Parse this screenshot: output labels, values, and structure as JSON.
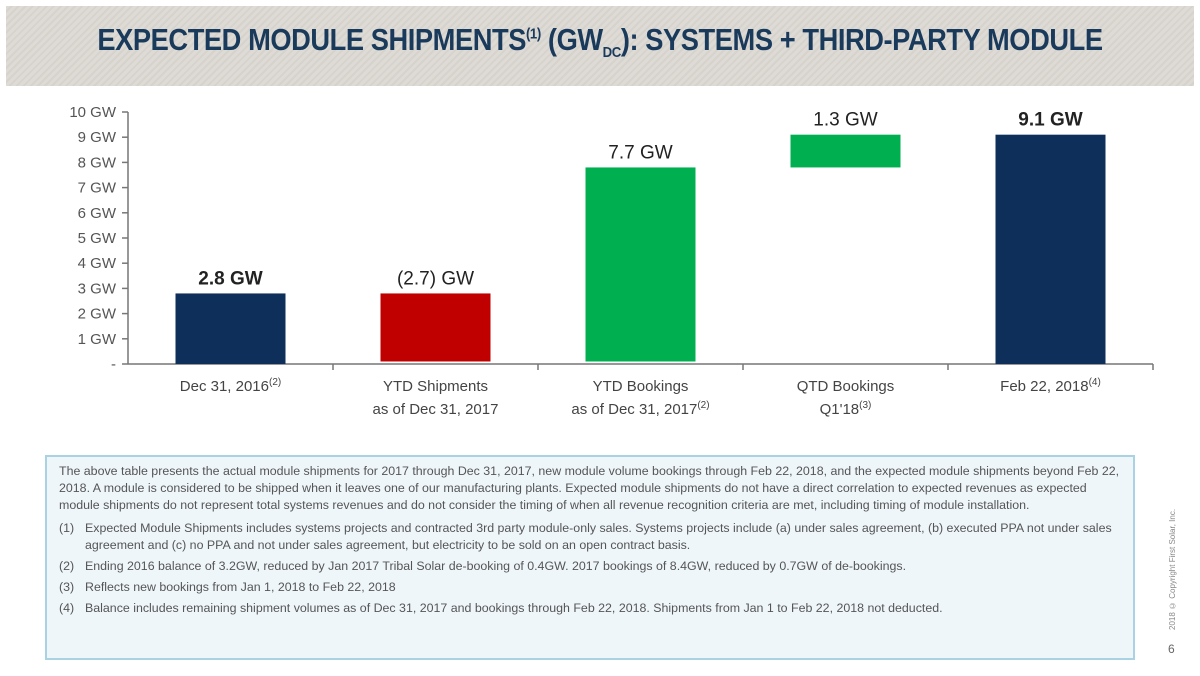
{
  "title": {
    "main": "EXPECTED MODULE SHIPMENTS",
    "sup": "(1)",
    "unit_pre": " (GW",
    "unit_sub": "DC",
    "unit_post": "): SYSTEMS + THIRD-PARTY MODULE"
  },
  "chart_data": {
    "type": "bar",
    "subtype": "waterfall",
    "ylim": [
      0,
      10
    ],
    "yticks": [
      "-",
      "1 GW",
      "2 GW",
      "3 GW",
      "4 GW",
      "5 GW",
      "6 GW",
      "7 GW",
      "8 GW",
      "9 GW",
      "10 GW"
    ],
    "grid": false,
    "categories": [
      {
        "line1": "Dec 31, 2016",
        "line1_sup": "(2)",
        "line2": ""
      },
      {
        "line1": "YTD Shipments",
        "line1_sup": "",
        "line2": "as of Dec 31, 2017"
      },
      {
        "line1": "YTD Bookings",
        "line1_sup": "",
        "line2": "as of Dec 31, 2017",
        "line2_sup": "(2)"
      },
      {
        "line1": "QTD Bookings",
        "line1_sup": "",
        "line2": "Q1'18",
        "line2_sup": "(3)"
      },
      {
        "line1": "Feb 22, 2018",
        "line1_sup": "(4)",
        "line2": ""
      }
    ],
    "bars": [
      {
        "start": 0,
        "end": 2.8,
        "label": "2.8 GW",
        "bold": true,
        "color": "#0d2f5a"
      },
      {
        "start": 0.1,
        "end": 2.8,
        "label": "(2.7) GW",
        "bold": false,
        "color": "#c00000"
      },
      {
        "start": 0.1,
        "end": 7.8,
        "label": "7.7 GW",
        "bold": false,
        "color": "#00b050"
      },
      {
        "start": 7.8,
        "end": 9.1,
        "label": "1.3 GW",
        "bold": false,
        "color": "#00b050"
      },
      {
        "start": 0,
        "end": 9.1,
        "label": "9.1 GW",
        "bold": true,
        "color": "#0d2f5a"
      }
    ]
  },
  "notes": {
    "intro": "The above table presents the actual module shipments for 2017 through Dec 31, 2017, new module volume bookings through Feb 22, 2018, and the expected module shipments beyond Feb 22, 2018. A module is considered to be shipped when it leaves one of our manufacturing plants. Expected module shipments do not have a direct correlation to expected revenues as expected module shipments do not represent total systems revenues and do not consider the timing of when all revenue recognition criteria are met, including timing of module installation.",
    "footnotes": [
      {
        "n": "(1)",
        "text": "Expected Module Shipments includes systems projects and contracted 3rd party module-only sales. Systems projects include (a) under sales agreement, (b) executed PPA not under sales agreement and (c) no PPA and not under sales agreement, but electricity to be sold on an open contract basis."
      },
      {
        "n": "(2)",
        "text": "Ending 2016 balance of 3.2GW, reduced by Jan 2017 Tribal Solar de-booking of 0.4GW.  2017 bookings of 8.4GW, reduced by 0.7GW of de-bookings."
      },
      {
        "n": "(3)",
        "text": "Reflects new bookings from Jan 1, 2018 to Feb 22, 2018"
      },
      {
        "n": "(4)",
        "text": "Balance includes remaining shipment volumes as of Dec 31, 2017 and bookings through Feb 22, 2018.  Shipments from Jan 1 to Feb 22, 2018 not deducted."
      }
    ]
  },
  "copyright": "2018 © Copyright First Solar, Inc.",
  "page_number": "6"
}
